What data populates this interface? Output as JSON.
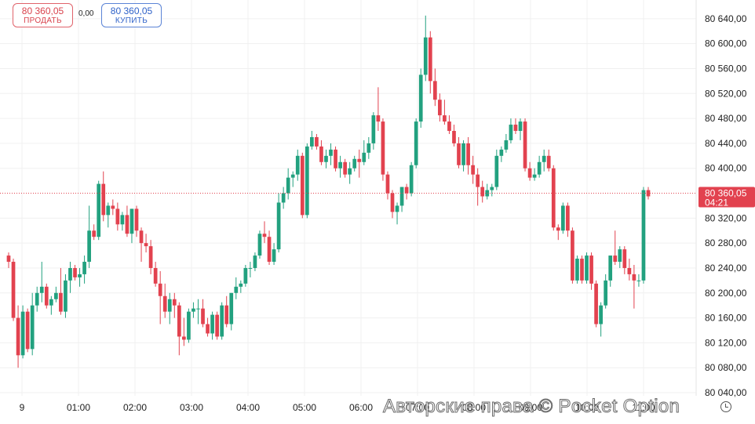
{
  "trade": {
    "sell": {
      "price": "80 360,05",
      "label": "ПРОДАТЬ"
    },
    "spread": "0,00",
    "buy": {
      "price": "80 360,05",
      "label": "КУПИТЬ"
    }
  },
  "watermark": "Авторские права © Pocket Option",
  "colors": {
    "up": "#22a17f",
    "down": "#e2424f",
    "grid": "#f0f0f0",
    "axis_text": "#1d1d1d"
  },
  "chart_data": {
    "type": "candlestick",
    "current_price": {
      "label": "80 360,05",
      "timer": "04:21",
      "value": 80360.05
    },
    "y_axis": {
      "range": [
        80035,
        80670
      ],
      "ticks": [
        80040,
        80080,
        80120,
        80160,
        80200,
        80240,
        80280,
        80320,
        80400,
        80440,
        80480,
        80520,
        80560,
        80600,
        80640
      ],
      "tick_labels": [
        "80 040,00",
        "80 080,00",
        "80 120,00",
        "80 160,00",
        "80 200,00",
        "80 240,00",
        "80 280,00",
        "80 320,00",
        "80 400,00",
        "80 440,00",
        "80 480,00",
        "80 520,00",
        "80 560,00",
        "80 600,00",
        "80 640,00"
      ]
    },
    "x_axis": {
      "labels": [
        {
          "text": "9",
          "hour": 0
        },
        {
          "text": "01:00",
          "hour": 1
        },
        {
          "text": "02:00",
          "hour": 2
        },
        {
          "text": "03:00",
          "hour": 3
        },
        {
          "text": "04:00",
          "hour": 4
        },
        {
          "text": "05:00",
          "hour": 5
        },
        {
          "text": "06:00",
          "hour": 6
        },
        {
          "text": "07:00",
          "hour": 7
        },
        {
          "text": "08:00",
          "hour": 8
        },
        {
          "text": "09:00",
          "hour": 9
        },
        {
          "text": "10:00",
          "hour": 10
        },
        {
          "text": "11:00",
          "hour": 11
        }
      ]
    },
    "candles": [
      [
        80260,
        80265,
        80240,
        80250
      ],
      [
        80250,
        80255,
        80155,
        80160
      ],
      [
        80160,
        80180,
        80080,
        80100
      ],
      [
        80100,
        80180,
        80095,
        80170
      ],
      [
        80170,
        80175,
        80105,
        80110
      ],
      [
        80110,
        80200,
        80100,
        80180
      ],
      [
        80180,
        80210,
        80170,
        80200
      ],
      [
        80200,
        80250,
        80185,
        80210
      ],
      [
        80210,
        80215,
        80175,
        80180
      ],
      [
        80180,
        80195,
        80165,
        80190
      ],
      [
        80190,
        80210,
        80185,
        80200
      ],
      [
        80200,
        80240,
        80165,
        80170
      ],
      [
        80170,
        80230,
        80160,
        80220
      ],
      [
        80220,
        80250,
        80200,
        80240
      ],
      [
        80240,
        80245,
        80220,
        80225
      ],
      [
        80225,
        80240,
        80210,
        80230
      ],
      [
        80230,
        80260,
        80215,
        80250
      ],
      [
        80250,
        80340,
        80240,
        80300
      ],
      [
        80300,
        80310,
        80285,
        80290
      ],
      [
        80290,
        80380,
        80285,
        80375
      ],
      [
        80375,
        80395,
        80315,
        80325
      ],
      [
        80325,
        80345,
        80305,
        80340
      ],
      [
        80340,
        80350,
        80325,
        80335
      ],
      [
        80335,
        80345,
        80300,
        80310
      ],
      [
        80310,
        80330,
        80300,
        80325
      ],
      [
        80325,
        80340,
        80290,
        80295
      ],
      [
        80295,
        80335,
        80280,
        80335
      ],
      [
        80335,
        80340,
        80290,
        80300
      ],
      [
        80300,
        80305,
        80250,
        80280
      ],
      [
        80280,
        80295,
        80265,
        80275
      ],
      [
        80275,
        80285,
        80230,
        80240
      ],
      [
        80240,
        80250,
        80210,
        80215
      ],
      [
        80215,
        80235,
        80150,
        80195
      ],
      [
        80195,
        80215,
        80160,
        80170
      ],
      [
        80170,
        80200,
        80150,
        80190
      ],
      [
        80190,
        80200,
        80160,
        80180
      ],
      [
        80180,
        80185,
        80100,
        80130
      ],
      [
        80130,
        80160,
        80115,
        80125
      ],
      [
        80125,
        80175,
        80120,
        80170
      ],
      [
        80170,
        80185,
        80160,
        80175
      ],
      [
        80175,
        80190,
        80150,
        80175
      ],
      [
        80175,
        80190,
        80145,
        80150
      ],
      [
        80150,
        80160,
        80130,
        80135
      ],
      [
        80135,
        80170,
        80125,
        80165
      ],
      [
        80165,
        80170,
        80125,
        80130
      ],
      [
        80130,
        80185,
        80125,
        80180
      ],
      [
        80180,
        80195,
        80145,
        80150
      ],
      [
        80150,
        80200,
        80140,
        80200
      ],
      [
        80200,
        80225,
        80190,
        80210
      ],
      [
        80210,
        80220,
        80200,
        80215
      ],
      [
        80215,
        80245,
        80210,
        80240
      ],
      [
        80240,
        80250,
        80225,
        80240
      ],
      [
        80240,
        80265,
        80235,
        80260
      ],
      [
        80260,
        80300,
        80255,
        80295
      ],
      [
        80295,
        80315,
        80280,
        80290
      ],
      [
        80290,
        80300,
        80245,
        80250
      ],
      [
        80250,
        80280,
        80245,
        80270
      ],
      [
        80270,
        80360,
        80265,
        80345
      ],
      [
        80345,
        80370,
        80335,
        80360
      ],
      [
        80360,
        80400,
        80350,
        80385
      ],
      [
        80385,
        80395,
        80370,
        80390
      ],
      [
        80390,
        80430,
        80380,
        80420
      ],
      [
        80420,
        80425,
        80320,
        80325
      ],
      [
        80325,
        80440,
        80320,
        80435
      ],
      [
        80435,
        80460,
        80430,
        80450
      ],
      [
        80450,
        80455,
        80430,
        80435
      ],
      [
        80435,
        80445,
        80405,
        80410
      ],
      [
        80410,
        80430,
        80400,
        80420
      ],
      [
        80420,
        80440,
        80405,
        80430
      ],
      [
        80430,
        80435,
        80395,
        80400
      ],
      [
        80400,
        80420,
        80385,
        80410
      ],
      [
        80410,
        80415,
        80385,
        80390
      ],
      [
        80390,
        80410,
        80375,
        80400
      ],
      [
        80400,
        80420,
        80395,
        80415
      ],
      [
        80415,
        80430,
        80385,
        80410
      ],
      [
        80410,
        80445,
        80405,
        80425
      ],
      [
        80425,
        80450,
        80415,
        80440
      ],
      [
        80440,
        80490,
        80430,
        80485
      ],
      [
        80485,
        80530,
        80460,
        80475
      ],
      [
        80475,
        80480,
        80380,
        80390
      ],
      [
        80390,
        80395,
        80350,
        80360
      ],
      [
        80360,
        80365,
        80320,
        80330
      ],
      [
        80330,
        80345,
        80310,
        80340
      ],
      [
        80340,
        80370,
        80330,
        80370
      ],
      [
        80370,
        80375,
        80350,
        80360
      ],
      [
        80360,
        80410,
        80355,
        80405
      ],
      [
        80405,
        80480,
        80400,
        80475
      ],
      [
        80475,
        80560,
        80465,
        80550
      ],
      [
        80550,
        80645,
        80540,
        80610
      ],
      [
        80610,
        80620,
        80520,
        80540
      ],
      [
        80540,
        80560,
        80500,
        80510
      ],
      [
        80510,
        80520,
        80475,
        80485
      ],
      [
        80485,
        80510,
        80470,
        80475
      ],
      [
        80475,
        80485,
        80455,
        80460
      ],
      [
        80460,
        80470,
        80435,
        80440
      ],
      [
        80440,
        80450,
        80400,
        80405
      ],
      [
        80405,
        80445,
        80395,
        80440
      ],
      [
        80440,
        80450,
        80390,
        80405
      ],
      [
        80405,
        80420,
        80375,
        80390
      ],
      [
        80390,
        80400,
        80340,
        80370
      ],
      [
        80370,
        80380,
        80345,
        80355
      ],
      [
        80355,
        80375,
        80350,
        80365
      ],
      [
        80365,
        80375,
        80355,
        80370
      ],
      [
        80370,
        80430,
        80365,
        80420
      ],
      [
        80420,
        80435,
        80410,
        80430
      ],
      [
        80430,
        80455,
        80425,
        80445
      ],
      [
        80445,
        80480,
        80440,
        80470
      ],
      [
        80470,
        80480,
        80455,
        80460
      ],
      [
        80460,
        80480,
        80445,
        80475
      ],
      [
        80475,
        80480,
        80395,
        80400
      ],
      [
        80400,
        80410,
        80380,
        80385
      ],
      [
        80385,
        80400,
        80380,
        80390
      ],
      [
        80390,
        80420,
        80385,
        80410
      ],
      [
        80410,
        80430,
        80395,
        80420
      ],
      [
        80420,
        80430,
        80395,
        80400
      ],
      [
        80400,
        80405,
        80300,
        80305
      ],
      [
        80305,
        80310,
        80285,
        80300
      ],
      [
        80300,
        80345,
        80295,
        80340
      ],
      [
        80340,
        80345,
        80290,
        80300
      ],
      [
        80300,
        80305,
        80215,
        80220
      ],
      [
        80220,
        80260,
        80215,
        80255
      ],
      [
        80255,
        80260,
        80215,
        80220
      ],
      [
        80220,
        80265,
        80215,
        80260
      ],
      [
        80260,
        80265,
        80205,
        80215
      ],
      [
        80215,
        80220,
        80145,
        80150
      ],
      [
        80150,
        80185,
        80130,
        80180
      ],
      [
        80180,
        80230,
        80175,
        80220
      ],
      [
        80220,
        80260,
        80210,
        80260
      ],
      [
        80260,
        80300,
        80245,
        80250
      ],
      [
        80250,
        80275,
        80240,
        80270
      ],
      [
        80270,
        80275,
        80230,
        80240
      ],
      [
        80240,
        80255,
        80220,
        80230
      ],
      [
        80230,
        80245,
        80175,
        80220
      ],
      [
        80220,
        80230,
        80210,
        80220
      ],
      [
        80220,
        80370,
        80215,
        80365
      ],
      [
        80365,
        80370,
        80350,
        80355
      ]
    ]
  }
}
